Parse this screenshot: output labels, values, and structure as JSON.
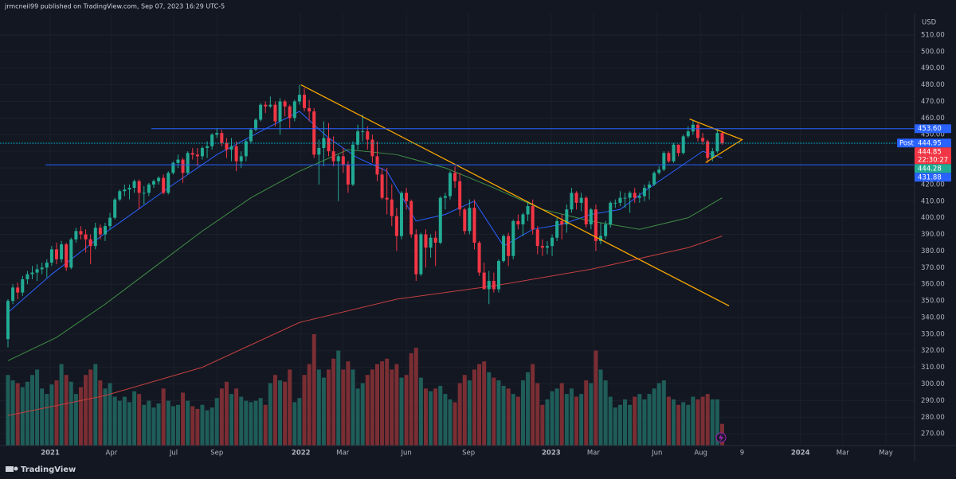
{
  "header": "jrmcneil99 published on TradingView.com, Sep 07, 2023 16:29 UTC-5",
  "currency": "USD",
  "footer": "TradingView",
  "chart_data": {
    "type": "candlestick",
    "up_color": "#22ab94",
    "down_color": "#f23645",
    "volume_up_color": "#1f5d59",
    "volume_down_color": "#7a2e33",
    "grid": true,
    "xlim": [
      -1.64,
      186.6
    ],
    "ylim": [
      262.9,
      522.9
    ],
    "yticks": [
      {
        "value": 270,
        "label": "270.00"
      },
      {
        "value": 280,
        "label": "280.00"
      },
      {
        "value": 290,
        "label": "290.00"
      },
      {
        "value": 300,
        "label": "300.00"
      },
      {
        "value": 310,
        "label": "310.00"
      },
      {
        "value": 320,
        "label": "320.00"
      },
      {
        "value": 330,
        "label": "330.00"
      },
      {
        "value": 340,
        "label": "340.00"
      },
      {
        "value": 350,
        "label": "350.00"
      },
      {
        "value": 360,
        "label": "360.00"
      },
      {
        "value": 370,
        "label": "370.00"
      },
      {
        "value": 380,
        "label": "380.00"
      },
      {
        "value": 390,
        "label": "390.00"
      },
      {
        "value": 400,
        "label": "400.00"
      },
      {
        "value": 410,
        "label": "410.00"
      },
      {
        "value": 420,
        "label": "420.00"
      },
      {
        "value": 430,
        "label": "430.00"
      },
      {
        "value": 440,
        "label": "440.00"
      },
      {
        "value": 450,
        "label": "450.00"
      },
      {
        "value": 460,
        "label": "460.00"
      },
      {
        "value": 470,
        "label": "470.00"
      },
      {
        "value": 480,
        "label": "480.00"
      },
      {
        "value": 490,
        "label": "490.00"
      },
      {
        "value": 500,
        "label": "500.00"
      },
      {
        "value": 510,
        "label": "510.00"
      }
    ],
    "xticks": [
      {
        "value": 8.7,
        "label": "2021"
      },
      {
        "value": 21.3,
        "label": "Apr"
      },
      {
        "value": 34.1,
        "label": "Jul"
      },
      {
        "value": 43.0,
        "label": "Sep"
      },
      {
        "value": 60.3,
        "label": "2022"
      },
      {
        "value": 68.9,
        "label": "Mar"
      },
      {
        "value": 82.0,
        "label": "Jun"
      },
      {
        "value": 94.8,
        "label": "Sep"
      },
      {
        "value": 111.8,
        "label": "2023"
      },
      {
        "value": 120.5,
        "label": "Mar"
      },
      {
        "value": 133.6,
        "label": "Jun"
      },
      {
        "value": 142.6,
        "label": "Aug"
      },
      {
        "value": 151.1,
        "label": "9"
      },
      {
        "value": 163.1,
        "label": "2024"
      },
      {
        "value": 171.8,
        "label": "Mar"
      },
      {
        "value": 180.7,
        "label": "May"
      }
    ],
    "open": [
      327,
      350,
      358,
      355,
      363,
      366,
      367,
      369,
      370,
      373,
      381,
      375,
      384,
      370,
      387,
      392,
      390,
      387,
      383,
      394,
      390,
      395,
      400,
      411,
      416,
      417,
      418,
      422,
      415,
      415,
      420,
      422,
      424,
      415,
      427,
      433,
      435,
      427,
      439,
      438,
      437,
      442,
      443,
      450,
      451,
      445,
      441,
      443,
      434,
      437,
      446,
      453,
      459,
      468,
      467,
      468,
      458,
      470,
      467,
      460,
      470,
      474,
      466,
      464,
      438,
      442,
      448,
      440,
      434,
      437,
      432,
      420,
      444,
      452,
      452,
      447,
      437,
      426,
      412,
      411,
      401,
      389,
      415,
      410,
      390,
      366,
      390,
      382,
      388,
      385,
      412,
      413,
      427,
      422,
      405,
      392,
      406,
      385,
      367,
      357,
      362,
      357,
      374,
      389,
      377,
      398,
      396,
      402,
      407,
      393,
      383,
      382,
      383,
      388,
      398,
      396,
      405,
      415,
      409,
      412,
      396,
      405,
      386,
      389,
      396,
      409,
      409,
      412,
      412,
      415,
      412,
      413,
      418,
      420,
      427,
      429,
      439,
      434,
      444,
      439,
      449,
      452,
      456,
      448,
      446,
      436,
      440,
      451
    ],
    "high": [
      351,
      360,
      361,
      365,
      368,
      371,
      372,
      373,
      375,
      383,
      385,
      386,
      385,
      388,
      394,
      395,
      393,
      390,
      397,
      396,
      397,
      403,
      412,
      417,
      420,
      420,
      423,
      423,
      419,
      421,
      423,
      425,
      426,
      428,
      434,
      438,
      436,
      440,
      442,
      442,
      443,
      446,
      451,
      454,
      453,
      448,
      448,
      446,
      440,
      447,
      454,
      460,
      469,
      470,
      473,
      470,
      472,
      471,
      468,
      471,
      480,
      478,
      471,
      466,
      447,
      458,
      457,
      449,
      438,
      442,
      434,
      446,
      456,
      462,
      455,
      450,
      446,
      430,
      430,
      420,
      406,
      416,
      418,
      411,
      393,
      391,
      393,
      390,
      392,
      413,
      415,
      428,
      431,
      427,
      406,
      411,
      411,
      386,
      373,
      368,
      367,
      375,
      390,
      391,
      399,
      402,
      403,
      410,
      411,
      395,
      387,
      386,
      390,
      400,
      402,
      408,
      418,
      416,
      415,
      413,
      406,
      408,
      397,
      398,
      410,
      411,
      416,
      415,
      416,
      418,
      415,
      420,
      422,
      428,
      431,
      440,
      440,
      445,
      444,
      450,
      455,
      459,
      457,
      451,
      447,
      442,
      453,
      452
    ],
    "low": [
      322,
      348,
      351,
      353,
      360,
      363,
      362,
      366,
      364,
      371,
      372,
      373,
      368,
      369,
      385,
      387,
      379,
      372,
      381,
      387,
      386,
      393,
      399,
      410,
      413,
      411,
      415,
      405,
      408,
      413,
      418,
      420,
      414,
      414,
      426,
      430,
      421,
      426,
      435,
      431,
      435,
      436,
      441,
      448,
      443,
      436,
      434,
      428,
      430,
      434,
      445,
      452,
      458,
      463,
      466,
      455,
      450,
      461,
      454,
      458,
      468,
      464,
      458,
      436,
      420,
      431,
      437,
      431,
      410,
      427,
      415,
      419,
      441,
      446,
      441,
      433,
      422,
      411,
      402,
      395,
      380,
      387,
      405,
      388,
      362,
      365,
      370,
      376,
      371,
      384,
      405,
      411,
      418,
      401,
      390,
      390,
      381,
      365,
      359,
      348,
      355,
      355,
      373,
      371,
      375,
      393,
      389,
      398,
      390,
      378,
      377,
      378,
      377,
      386,
      387,
      391,
      403,
      405,
      404,
      394,
      393,
      380,
      384,
      387,
      394,
      406,
      407,
      406,
      403,
      409,
      409,
      410,
      411,
      419,
      426,
      428,
      433,
      433,
      437,
      438,
      448,
      450,
      446,
      444,
      433,
      434,
      439,
      444
    ],
    "close": [
      350,
      358,
      355,
      363,
      366,
      367,
      369,
      370,
      373,
      381,
      375,
      384,
      370,
      387,
      392,
      390,
      387,
      383,
      394,
      390,
      395,
      400,
      411,
      416,
      417,
      418,
      422,
      415,
      415,
      420,
      422,
      424,
      415,
      427,
      433,
      435,
      427,
      439,
      438,
      437,
      442,
      443,
      450,
      451,
      445,
      441,
      443,
      434,
      437,
      446,
      453,
      459,
      468,
      467,
      468,
      458,
      470,
      467,
      460,
      470,
      474,
      466,
      464,
      438,
      442,
      448,
      440,
      434,
      437,
      432,
      420,
      444,
      452,
      452,
      447,
      437,
      426,
      412,
      411,
      401,
      389,
      415,
      410,
      390,
      366,
      390,
      382,
      388,
      385,
      412,
      413,
      427,
      422,
      405,
      392,
      406,
      385,
      367,
      357,
      362,
      357,
      374,
      389,
      377,
      398,
      396,
      402,
      407,
      393,
      383,
      382,
      383,
      388,
      398,
      396,
      405,
      415,
      409,
      412,
      396,
      405,
      386,
      389,
      396,
      409,
      409,
      412,
      412,
      415,
      412,
      413,
      418,
      420,
      427,
      429,
      439,
      434,
      444,
      439,
      449,
      452,
      456,
      448,
      446,
      436,
      440,
      451,
      444.85
    ],
    "volume": [
      520,
      480,
      460,
      430,
      470,
      520,
      560,
      420,
      380,
      450,
      480,
      600,
      520,
      470,
      380,
      430,
      520,
      560,
      600,
      480,
      420,
      460,
      360,
      330,
      360,
      320,
      400,
      380,
      300,
      330,
      280,
      310,
      420,
      330,
      290,
      300,
      390,
      330,
      290,
      270,
      300,
      260,
      280,
      350,
      420,
      470,
      380,
      420,
      360,
      330,
      320,
      330,
      350,
      300,
      460,
      520,
      480,
      470,
      560,
      320,
      350,
      520,
      600,
      820,
      560,
      500,
      560,
      640,
      700,
      560,
      620,
      560,
      420,
      460,
      520,
      560,
      600,
      620,
      640,
      560,
      600,
      500,
      520,
      680,
      720,
      500,
      420,
      400,
      420,
      440,
      380,
      340,
      320,
      460,
      520,
      480,
      560,
      600,
      620,
      540,
      500,
      480,
      440,
      420,
      380,
      360,
      480,
      540,
      600,
      460,
      300,
      340,
      400,
      420,
      460,
      380,
      420,
      360,
      380,
      480,
      460,
      700,
      560,
      480,
      360,
      280,
      300,
      340,
      300,
      360,
      380,
      340,
      380,
      420,
      460,
      480,
      360,
      340,
      300,
      320,
      300,
      360,
      340,
      360,
      380,
      340,
      340,
      160
    ],
    "overlays": [
      {
        "color": "#2962ff",
        "x": [
          0,
          9,
          21,
          34,
          43,
          52,
          60,
          66,
          72,
          78,
          84,
          90,
          96,
          102,
          108,
          114,
          120,
          126,
          132,
          138,
          143,
          147
        ],
        "values": [
          343,
          366,
          393,
          420,
          438,
          452,
          464,
          448,
          436,
          428,
          398,
          402,
          410,
          383,
          393,
          396,
          402,
          405,
          418,
          430,
          440,
          436
        ]
      },
      {
        "color": "#3f8f45",
        "x": [
          0,
          10,
          20,
          30,
          40,
          50,
          60,
          70,
          80,
          90,
          100,
          110,
          120,
          130,
          140,
          147
        ],
        "values": [
          314,
          328,
          348,
          370,
          392,
          412,
          428,
          441,
          438,
          430,
          418,
          405,
          398,
          393,
          400,
          412
        ]
      },
      {
        "color": "#c2403f",
        "x": [
          0,
          20,
          40,
          60,
          80,
          100,
          120,
          140,
          147
        ],
        "values": [
          281,
          293,
          310,
          337,
          351,
          359,
          369,
          382,
          389
        ]
      }
    ],
    "drawings": [
      {
        "color": "#f7a600",
        "x": [
          60.3,
          148.4
        ],
        "prices": [
          480,
          347
        ]
      },
      {
        "color": "#f7a600",
        "x": [
          140.3,
          151.1,
          143.6
        ],
        "prices": [
          459.4,
          447,
          433.2
        ]
      }
    ],
    "price_tags": [
      {
        "value": 453.6,
        "label": "453.60",
        "color": "#2962ff",
        "line_start": 29.5
      },
      {
        "value": 444.95,
        "label": "444.95",
        "note": "Post",
        "note_side": "left",
        "color": "#2962ff"
      },
      {
        "value": 444.85,
        "label": "444.85",
        "note": "22:30:27",
        "note_side": "below",
        "color": "#f23645",
        "line_start": -1.64,
        "line_color": "#00bcd4",
        "dashed": true
      },
      {
        "value": 444.28,
        "label": "444.28",
        "color": "#22ab94"
      },
      {
        "value": 431.88,
        "label": "431.88",
        "color": "#2962ff",
        "line_start": 7.7
      }
    ]
  }
}
